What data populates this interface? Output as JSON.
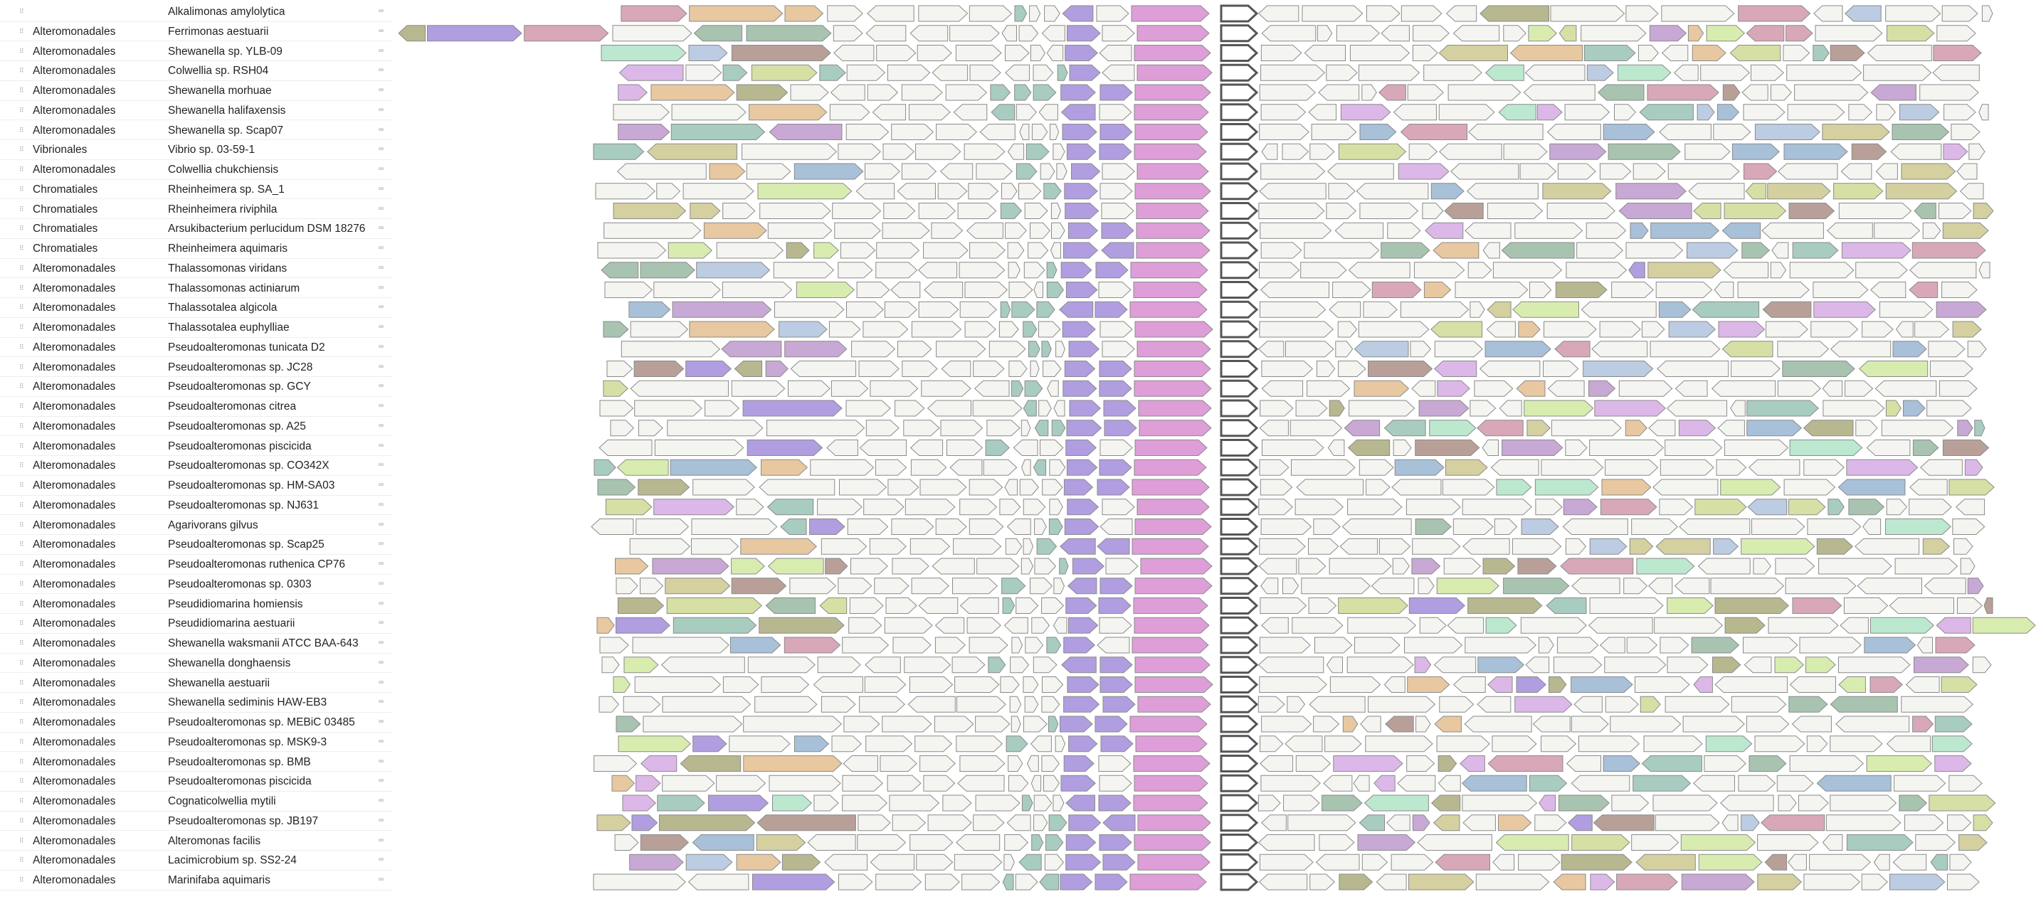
{
  "link_icon": "link-icon",
  "handle_icon": "drag-handle-icon",
  "rows": [
    {
      "order": "",
      "species": "Alkalimonas amylolytica"
    },
    {
      "order": "Alteromonadales",
      "species": "Ferrimonas aestuarii"
    },
    {
      "order": "Alteromonadales",
      "species": "Shewanella sp. YLB-09"
    },
    {
      "order": "Alteromonadales",
      "species": "Colwellia sp. RSH04"
    },
    {
      "order": "Alteromonadales",
      "species": "Shewanella morhuae"
    },
    {
      "order": "Alteromonadales",
      "species": "Shewanella halifaxensis"
    },
    {
      "order": "Alteromonadales",
      "species": "Shewanella sp. Scap07"
    },
    {
      "order": "Vibrionales",
      "species": "Vibrio sp. 03-59-1"
    },
    {
      "order": "Alteromonadales",
      "species": "Colwellia chukchiensis"
    },
    {
      "order": "Chromatiales",
      "species": "Rheinheimera sp. SA_1"
    },
    {
      "order": "Chromatiales",
      "species": "Rheinheimera riviphila"
    },
    {
      "order": "Chromatiales",
      "species": "Arsukibacterium perlucidum DSM 18276"
    },
    {
      "order": "Chromatiales",
      "species": "Rheinheimera aquimaris"
    },
    {
      "order": "Alteromonadales",
      "species": "Thalassomonas viridans"
    },
    {
      "order": "Alteromonadales",
      "species": "Thalassomonas actiniarum"
    },
    {
      "order": "Alteromonadales",
      "species": "Thalassotalea algicola"
    },
    {
      "order": "Alteromonadales",
      "species": "Thalassotalea euphylliae"
    },
    {
      "order": "Alteromonadales",
      "species": "Pseudoalteromonas tunicata D2"
    },
    {
      "order": "Alteromonadales",
      "species": "Pseudoalteromonas sp. JC28"
    },
    {
      "order": "Alteromonadales",
      "species": "Pseudoalteromonas sp. GCY"
    },
    {
      "order": "Alteromonadales",
      "species": "Pseudoalteromonas citrea"
    },
    {
      "order": "Alteromonadales",
      "species": "Pseudoalteromonas sp. A25"
    },
    {
      "order": "Alteromonadales",
      "species": "Pseudoalteromonas piscicida"
    },
    {
      "order": "Alteromonadales",
      "species": "Pseudoalteromonas sp. CO342X"
    },
    {
      "order": "Alteromonadales",
      "species": "Pseudoalteromonas sp. HM-SA03"
    },
    {
      "order": "Alteromonadales",
      "species": "Pseudoalteromonas sp. NJ631"
    },
    {
      "order": "Alteromonadales",
      "species": "Agarivorans gilvus"
    },
    {
      "order": "Alteromonadales",
      "species": "Pseudoalteromonas sp. Scap25"
    },
    {
      "order": "Alteromonadales",
      "species": "Pseudoalteromonas ruthenica CP76"
    },
    {
      "order": "Alteromonadales",
      "species": "Pseudoalteromonas sp. 0303"
    },
    {
      "order": "Alteromonadales",
      "species": "Pseudidiomarina homiensis"
    },
    {
      "order": "Alteromonadales",
      "species": "Pseudidiomarina aestuarii"
    },
    {
      "order": "Alteromonadales",
      "species": "Shewanella waksmanii ATCC BAA-643"
    },
    {
      "order": "Alteromonadales",
      "species": "Shewanella donghaensis"
    },
    {
      "order": "Alteromonadales",
      "species": "Shewanella aestuarii"
    },
    {
      "order": "Alteromonadales",
      "species": "Shewanella sediminis HAW-EB3"
    },
    {
      "order": "Alteromonadales",
      "species": "Pseudoalteromonas sp. MEBiC 03485"
    },
    {
      "order": "Alteromonadales",
      "species": "Pseudoalteromonas sp. MSK9-3"
    },
    {
      "order": "Alteromonadales",
      "species": "Pseudoalteromonas sp. BMB"
    },
    {
      "order": "Alteromonadales",
      "species": "Pseudoalteromonas piscicida"
    },
    {
      "order": "Alteromonadales",
      "species": "Cognaticolwellia mytili"
    },
    {
      "order": "Alteromonadales",
      "species": "Pseudoalteromonas sp. JB197"
    },
    {
      "order": "Alteromonadales",
      "species": "Alteromonas facilis"
    },
    {
      "order": "Alteromonadales",
      "species": "Lacimicrobium sp. SS2-24"
    },
    {
      "order": "Alteromonadales",
      "species": "Marinifaba aquimaris"
    }
  ],
  "colors": {
    "default": "#f4f4f0",
    "query": "#ffffff",
    "magenta": "#de9ed8",
    "purple": "#b09ee0",
    "sage": "#d6e0a4",
    "teal": "#a8ccc0",
    "olive": "#d4d0a0",
    "mauve": "#c8a8d4",
    "steel": "#bccce2",
    "taupe": "#b8a098",
    "green": "#a8c4b0",
    "olive2": "#b8b890",
    "pink": "#d8a8b8",
    "lime": "#d8ecb0",
    "peach": "#e8c8a0",
    "mint": "#bce8d0",
    "lilac": "#dcb8e8",
    "blue": "#a8c0d8"
  }
}
